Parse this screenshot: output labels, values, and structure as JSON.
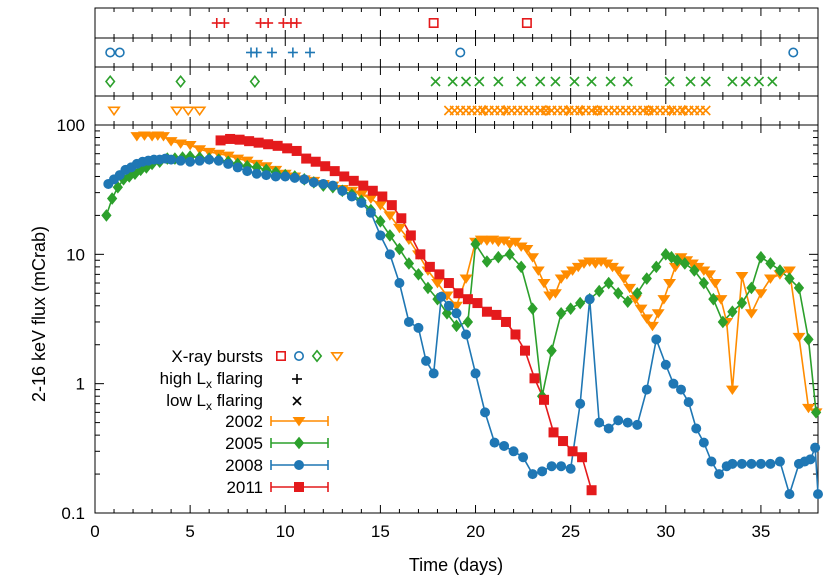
{
  "chart_data": {
    "type": "line",
    "xlabel": "Time (days)",
    "ylabel": "2-16 keV flux (mCrab)",
    "xlim": [
      0,
      38
    ],
    "ylim": [
      0.1,
      100
    ],
    "yscale": "log",
    "x_ticks": [
      0,
      5,
      10,
      15,
      20,
      25,
      30,
      35
    ],
    "y_ticks": [
      {
        "value": 0.1,
        "label": "0.1"
      },
      {
        "value": 1,
        "label": "1"
      },
      {
        "value": 10,
        "label": "10"
      },
      {
        "value": 100,
        "label": "100"
      }
    ],
    "legend_position": "bottom-left",
    "legend": {
      "bursts_label": "X-ray bursts",
      "high_flare_label_pre": "high L",
      "high_flare_label_sub": "x",
      "high_flare_label_post": " flaring",
      "low_flare_label_pre": "low L",
      "low_flare_label_sub": "x",
      "low_flare_label_post": " flaring"
    },
    "series": [
      {
        "name": "2002",
        "color": "#ff8c00",
        "marker": "triangle-down",
        "x": [
          2.2,
          2.6,
          3.0,
          3.3,
          3.6,
          4.0,
          4.5,
          5.0,
          5.5,
          6.0,
          6.5,
          7.0,
          7.5,
          8.0,
          8.5,
          9.0,
          9.5,
          10.0,
          10.5,
          11.0,
          11.5,
          12.0,
          12.5,
          13.0,
          13.5,
          14.0,
          14.5,
          15.0,
          15.5,
          16.0,
          16.5,
          17.0,
          17.5,
          18.0,
          18.5,
          19.0,
          19.5,
          20.0,
          20.3,
          20.6,
          20.9,
          21.2,
          21.5,
          21.8,
          22.1,
          22.4,
          22.7,
          23.0,
          23.3,
          23.6,
          23.9,
          24.2,
          24.5,
          24.8,
          25.1,
          25.4,
          25.7,
          26.0,
          26.3,
          26.6,
          26.9,
          27.2,
          27.5,
          27.8,
          28.1,
          28.4,
          28.7,
          29.0,
          29.3,
          29.6,
          29.9,
          30.2,
          30.5,
          30.8,
          31.1,
          31.4,
          31.7,
          32.0,
          32.3,
          32.6,
          32.9,
          33.2,
          33.5,
          34.0,
          34.5,
          35.0,
          35.5,
          36.0,
          36.5,
          37.0,
          37.5,
          37.9
        ],
        "y": [
          82,
          83,
          82,
          83,
          82,
          75,
          72,
          70,
          65,
          62,
          60,
          58,
          55,
          53,
          50,
          48,
          45,
          42,
          40,
          38,
          37,
          35,
          34,
          32,
          31,
          29,
          27,
          24,
          20,
          16,
          13,
          10,
          7.5,
          6.0,
          4.8,
          4.0,
          6.5,
          12.5,
          13.0,
          12.8,
          13.0,
          12.5,
          12.8,
          12.0,
          12.5,
          11.5,
          11.0,
          9.5,
          7.5,
          6.0,
          4.8,
          5.0,
          6.5,
          7.0,
          7.5,
          8.0,
          8.5,
          8.8,
          8.5,
          8.8,
          8.5,
          8.0,
          7.5,
          6.5,
          5.5,
          4.5,
          3.8,
          3.2,
          2.8,
          3.5,
          4.5,
          6.0,
          8.0,
          9.5,
          9.0,
          8.5,
          8.0,
          7.5,
          7.0,
          6.0,
          4.5,
          3.0,
          0.9,
          6.8,
          3.5,
          5.0,
          6.5,
          7.0,
          7.5,
          2.3,
          0.65,
          0.6
        ]
      },
      {
        "name": "2005",
        "color": "#2ca02c",
        "marker": "diamond",
        "x": [
          0.6,
          0.9,
          1.2,
          1.5,
          1.8,
          2.1,
          2.4,
          2.7,
          3.0,
          3.4,
          3.8,
          4.2,
          4.6,
          5.0,
          5.5,
          6.0,
          6.5,
          7.0,
          7.5,
          8.0,
          8.5,
          9.0,
          9.5,
          10.0,
          10.5,
          11.0,
          11.5,
          12.0,
          12.5,
          13.0,
          13.5,
          14.0,
          14.5,
          15.0,
          15.5,
          16.0,
          16.5,
          17.0,
          17.5,
          18.0,
          18.5,
          19.0,
          19.6,
          20.0,
          20.6,
          21.2,
          21.8,
          22.4,
          23.0,
          23.5,
          24.0,
          24.5,
          25.0,
          25.5,
          26.0,
          26.5,
          27.0,
          27.5,
          28.0,
          28.5,
          29.0,
          29.5,
          30.0,
          30.3,
          30.6,
          31.0,
          31.5,
          32.0,
          32.5,
          33.0,
          33.5,
          34.0,
          34.5,
          35.0,
          35.5,
          36.0,
          36.5,
          37.0,
          37.5,
          37.9
        ],
        "y": [
          20,
          27,
          33,
          38,
          40,
          42,
          45,
          47,
          50,
          52,
          55,
          55,
          56,
          57,
          56,
          55,
          54,
          52,
          50,
          48,
          47,
          45,
          43,
          41,
          40,
          38,
          36,
          34,
          33,
          31,
          29,
          26,
          22,
          18,
          14,
          11,
          8.5,
          7.0,
          5.5,
          4.5,
          3.5,
          2.8,
          3.0,
          12.0,
          8.8,
          9.5,
          10.0,
          8.0,
          3.8,
          0.8,
          1.8,
          3.5,
          3.8,
          4.2,
          4.5,
          5.2,
          6.0,
          5.0,
          4.3,
          5.0,
          6.5,
          8.0,
          10.0,
          9.5,
          9.0,
          8.5,
          7.5,
          6.0,
          4.5,
          3.0,
          3.6,
          4.2,
          5.5,
          9.5,
          8.5,
          7.5,
          6.5,
          5.5,
          2.2,
          0.6
        ]
      },
      {
        "name": "2008",
        "color": "#1f77b4",
        "marker": "circle",
        "x": [
          0.7,
          1.0,
          1.3,
          1.6,
          1.9,
          2.2,
          2.5,
          2.8,
          3.1,
          3.4,
          3.7,
          4.0,
          4.5,
          5.0,
          5.5,
          6.0,
          6.5,
          7.0,
          7.5,
          8.0,
          8.5,
          9.0,
          9.5,
          10.0,
          10.5,
          11.0,
          11.5,
          12.0,
          12.5,
          13.0,
          13.5,
          14.0,
          14.5,
          15.0,
          15.5,
          16.0,
          16.5,
          17.0,
          17.4,
          17.8,
          18.2,
          18.6,
          19.0,
          19.5,
          20.0,
          20.5,
          21.0,
          21.5,
          22.0,
          22.5,
          23.0,
          23.5,
          24.0,
          24.5,
          25.0,
          25.5,
          26.0,
          26.5,
          27.0,
          27.5,
          28.0,
          28.5,
          29.0,
          29.5,
          30.0,
          30.4,
          30.8,
          31.2,
          31.6,
          32.0,
          32.4,
          32.8,
          33.2,
          33.5,
          34.0,
          34.5,
          35.0,
          35.5,
          36.0,
          36.5,
          37.0,
          37.3,
          37.6,
          37.85,
          38.0
        ],
        "y": [
          35,
          38,
          41,
          45,
          47,
          50,
          52,
          53,
          54,
          54,
          55,
          54,
          53,
          52,
          53,
          54,
          53,
          50,
          47,
          44,
          42,
          41,
          40,
          40,
          39,
          38,
          36,
          35,
          34,
          31,
          28,
          25,
          21,
          14,
          10,
          6.0,
          3.0,
          2.7,
          1.5,
          1.2,
          4.7,
          4.0,
          3.5,
          2.4,
          1.2,
          0.6,
          0.35,
          0.33,
          0.3,
          0.27,
          0.2,
          0.21,
          0.23,
          0.23,
          0.22,
          0.7,
          4.5,
          0.5,
          0.45,
          0.52,
          0.5,
          0.48,
          0.9,
          2.2,
          1.4,
          1.0,
          0.9,
          0.72,
          0.45,
          0.35,
          0.25,
          0.2,
          0.23,
          0.24,
          0.24,
          0.24,
          0.24,
          0.24,
          0.25,
          0.14,
          0.24,
          0.25,
          0.26,
          0.32,
          0.14
        ]
      },
      {
        "name": "2011",
        "color": "#e41a1c",
        "marker": "square",
        "x": [
          6.6,
          7.1,
          7.6,
          8.1,
          8.6,
          9.1,
          9.6,
          10.1,
          10.6,
          11.1,
          11.6,
          12.1,
          12.6,
          13.1,
          13.6,
          14.1,
          14.6,
          15.1,
          15.6,
          16.1,
          16.6,
          17.1,
          17.6,
          18.1,
          18.6,
          19.1,
          19.6,
          20.1,
          20.6,
          21.1,
          21.6,
          22.1,
          22.6,
          23.1,
          23.6,
          24.1,
          24.6,
          25.1,
          25.6,
          26.1
        ],
        "y": [
          76,
          78,
          77,
          75,
          73,
          71,
          69,
          66,
          63,
          55,
          52,
          48,
          44,
          40,
          37,
          34,
          31,
          28,
          24,
          19,
          14,
          10,
          8,
          7,
          6,
          5,
          4.5,
          4.2,
          3.6,
          3.4,
          3.0,
          2.4,
          1.8,
          1.1,
          0.75,
          0.42,
          0.36,
          0.3,
          0.27,
          0.15
        ]
      }
    ],
    "bursts": {
      "2011": [
        17.8,
        22.7
      ],
      "2008": [
        0.8,
        1.3,
        19.2,
        36.7
      ],
      "2005": [
        0.8,
        4.5,
        8.4
      ],
      "2002": [
        1.0,
        4.3,
        4.9,
        5.5
      ]
    },
    "high_flaring": {
      "2011": [
        6.4,
        6.8,
        8.7,
        9.1,
        9.9,
        10.3,
        10.6
      ],
      "2008": [
        8.2,
        8.5,
        9.3,
        10.4,
        11.3
      ]
    },
    "low_flaring": {
      "2005": [
        17.9,
        18.8,
        19.5,
        20.2,
        21.2,
        22.4,
        23.4,
        24.2,
        25.2,
        26.1,
        27.1,
        28.0,
        30.2,
        31.3,
        32.1,
        33.5,
        34.2,
        34.9,
        35.6
      ],
      "2002": [
        18.6,
        18.9,
        19.2,
        19.5,
        19.8,
        20.1,
        20.4,
        20.7,
        21.0,
        21.3,
        21.6,
        21.9,
        22.2,
        22.5,
        22.8,
        23.1,
        23.4,
        23.7,
        24.0,
        24.3,
        24.6,
        24.9,
        25.2,
        25.5,
        25.8,
        26.1,
        26.4,
        26.7,
        27.0,
        27.3,
        27.6,
        27.9,
        28.2,
        28.5,
        28.8,
        29.1,
        29.4,
        29.7,
        30.0,
        30.3,
        30.6,
        30.9,
        31.2,
        31.5,
        31.8,
        32.1
      ],
      "2002_bursts_in_flaring": [
        20.5,
        21.5,
        23.7,
        24.8,
        25.6,
        26.4,
        29.1,
        30.2,
        31.0
      ]
    }
  }
}
